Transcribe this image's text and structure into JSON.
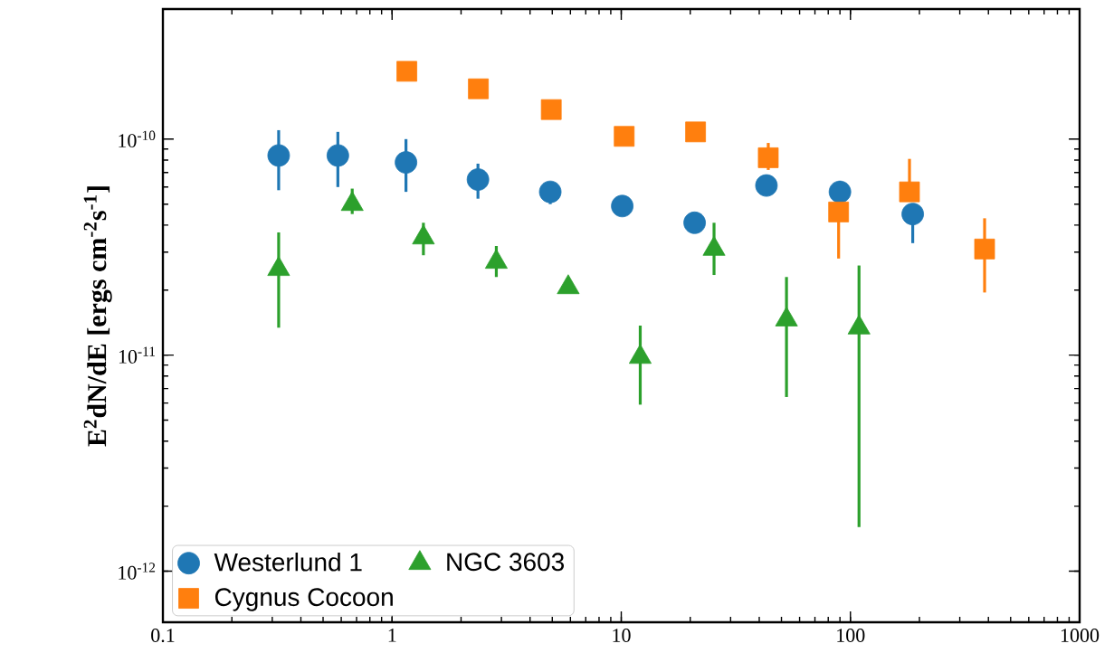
{
  "chart_data": {
    "type": "scatter",
    "ylabel": "E$^{2}$dN/dE [ergs cm$^{-2}$s$^{-1}$]",
    "log": "xy",
    "xlim": [
      0.1,
      1000
    ],
    "ylim": [
      5.8e-13,
      4e-10
    ],
    "xticks": [
      0.1,
      1,
      10,
      100,
      1000
    ],
    "yticks": [
      {
        "value": 1e-12,
        "label": "10$^{-12}$"
      },
      {
        "value": 1e-11,
        "label": "10$^{-11}$"
      },
      {
        "value": 1e-10,
        "label": "10$^{-10}$"
      }
    ],
    "legend": "bottom left",
    "grid": false,
    "series": [
      {
        "name": "Westerlund 1",
        "color": "#1f77b4",
        "marker": "circle",
        "x": [
          0.32,
          0.58,
          1.15,
          2.37,
          4.9,
          10.1,
          20.9,
          43,
          90,
          187
        ],
        "values": [
          8.4e-11,
          8.4e-11,
          7.8e-11,
          6.5e-11,
          5.7e-11,
          4.9e-11,
          4.1e-11,
          6.1e-11,
          5.7e-11,
          4.5e-11
        ],
        "errors": [
          [
            5.8e-11,
            1.1e-10
          ],
          [
            6e-11,
            1.08e-10
          ],
          [
            5.7e-11,
            1e-10
          ],
          [
            5.3e-11,
            7.7e-11
          ],
          [
            5e-11,
            6.3e-11
          ],
          null,
          [
            3.7e-11,
            4.5e-11
          ],
          null,
          [
            5.2e-11,
            6.4e-11
          ],
          [
            3.3e-11,
            5e-11
          ]
        ]
      },
      {
        "name": "Cygnus Cocoon",
        "color": "#ff7f0e",
        "marker": "square",
        "x": [
          1.16,
          2.38,
          4.95,
          10.3,
          21.1,
          43.8,
          88.8,
          181,
          385
        ],
        "values": [
          2.06e-10,
          1.71e-10,
          1.37e-10,
          1.03e-10,
          1.08e-10,
          8.2e-11,
          4.6e-11,
          5.7e-11,
          3.1e-11
        ],
        "errors": [
          null,
          null,
          null,
          null,
          null,
          [
            7.2e-11,
            9.6e-11
          ],
          [
            2.8e-11,
            5.2e-11
          ],
          [
            5.7e-11,
            8.1e-11
          ],
          [
            1.95e-11,
            4.3e-11
          ]
        ]
      },
      {
        "name": "NGC 3603",
        "color": "#2ca02c",
        "marker": "triangle",
        "x": [
          0.32,
          0.67,
          1.37,
          2.85,
          5.87,
          12.1,
          25.4,
          52.6,
          109
        ],
        "values": [
          2.5e-11,
          5e-11,
          3.5e-11,
          2.7e-11,
          2.06e-11,
          9.8e-12,
          3.1e-11,
          1.46e-11,
          1.34e-11
        ],
        "errors": [
          [
            1.34e-11,
            3.7e-11
          ],
          [
            4.5e-11,
            5.9e-11
          ],
          [
            2.9e-11,
            4.1e-11
          ],
          [
            2.3e-11,
            3.2e-11
          ],
          null,
          [
            5.9e-12,
            1.37e-11
          ],
          [
            2.35e-11,
            4.1e-11
          ],
          [
            6.4e-12,
            2.3e-11
          ],
          [
            1.6e-12,
            2.6e-11
          ]
        ]
      }
    ]
  }
}
